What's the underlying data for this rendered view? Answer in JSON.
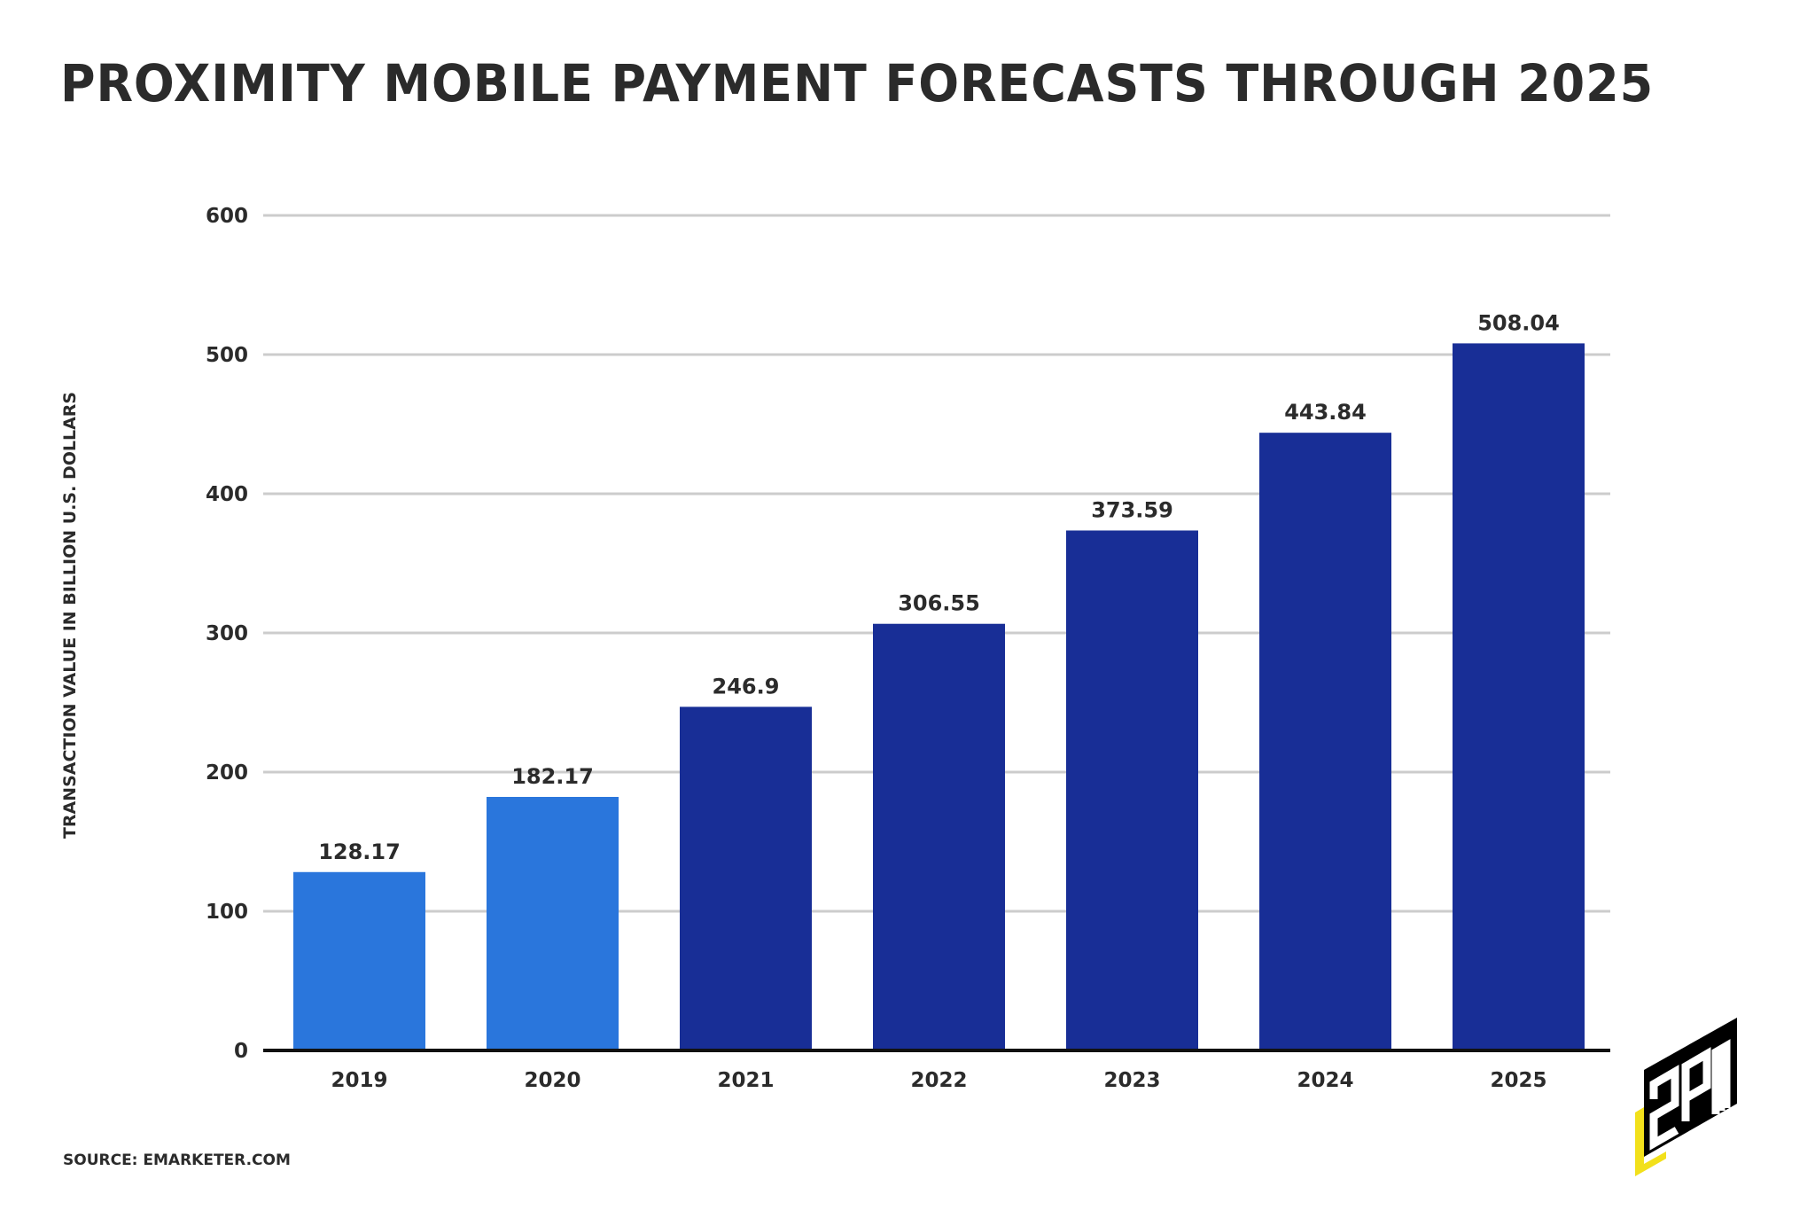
{
  "chart_data": {
    "type": "bar",
    "title": "PROXIMITY MOBILE PAYMENT FORECASTS THROUGH 2025",
    "xlabel": "",
    "ylabel": "TRANSACTION VALUE IN BILLION U.S. DOLLARS",
    "categories": [
      "2019",
      "2020",
      "2021",
      "2022",
      "2023",
      "2024",
      "2025"
    ],
    "values": [
      128.17,
      182.17,
      246.9,
      306.55,
      373.59,
      443.84,
      508.04
    ],
    "value_labels": [
      "128.17",
      "182.17",
      "246.9",
      "306.55",
      "373.59",
      "443.84",
      "508.04"
    ],
    "bar_colors": [
      "#2a76dc",
      "#2a76dc",
      "#182e96",
      "#182e96",
      "#182e96",
      "#182e96",
      "#182e96"
    ],
    "ylim": [
      0,
      600
    ],
    "yticks": [
      0,
      100,
      200,
      300,
      400,
      500,
      600
    ],
    "grid": true,
    "legend": "none"
  },
  "source": "SOURCE: EMARKETER.COM",
  "logo": {
    "text": "2PM",
    "accent": "#f2e01b"
  },
  "colors": {
    "text": "#2b2b2b",
    "grid": "#cccccc",
    "axis": "#111111"
  }
}
